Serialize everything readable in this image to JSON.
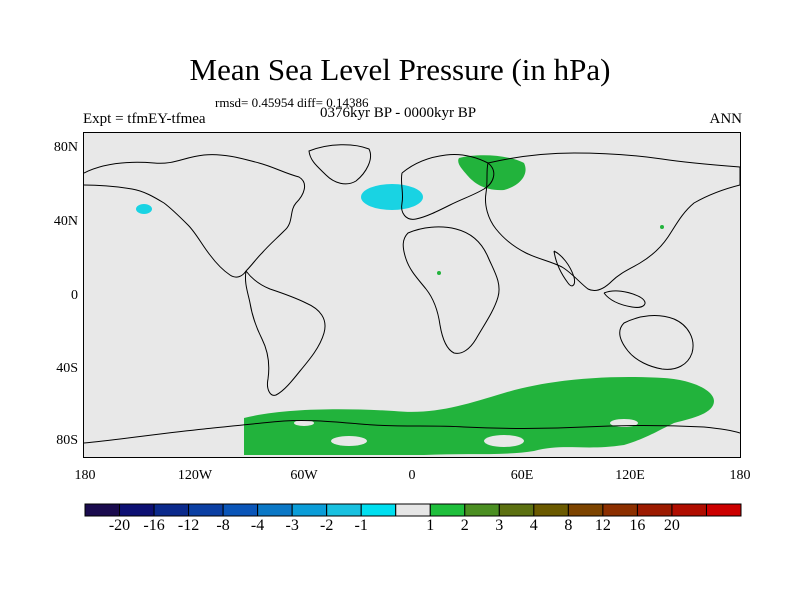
{
  "title": "Mean Sea Level Pressure (in hPa)",
  "subtitle_stats": "rmsd= 0.45954 diff= 0.14386",
  "subtitle_period": "0376kyr BP - 0000kyr BP",
  "experiment": "Expt = tfmEY-tfmea",
  "season": "ANN",
  "y_ticks": [
    "80N",
    "40N",
    "0",
    "40S",
    "80S"
  ],
  "x_ticks": [
    "180",
    "120W",
    "60W",
    "0",
    "60E",
    "120E",
    "180"
  ],
  "colorbar": {
    "colors": [
      "#1a0b4e",
      "#0d1073",
      "#0b2a8c",
      "#0b3fa3",
      "#0a55b8",
      "#0b78c6",
      "#0a9dd8",
      "#19c1e0",
      "#00dff0",
      "#e6e6e6",
      "#1fbf3c",
      "#4b8f22",
      "#5c7011",
      "#6b5a00",
      "#7d4400",
      "#8c2f00",
      "#9c1a00",
      "#b00d00",
      "#cc0000"
    ],
    "labels": [
      "-20",
      "-16",
      "-12",
      "-8",
      "-4",
      "-3",
      "-2",
      "-1",
      "1",
      "2",
      "3",
      "4",
      "8",
      "12",
      "16",
      "20"
    ]
  },
  "map_colors": {
    "background": "#e8e8e8",
    "positive_anomaly": "#22b33c",
    "negative_anomaly": "#19d3e3",
    "coastline": "#000000"
  }
}
